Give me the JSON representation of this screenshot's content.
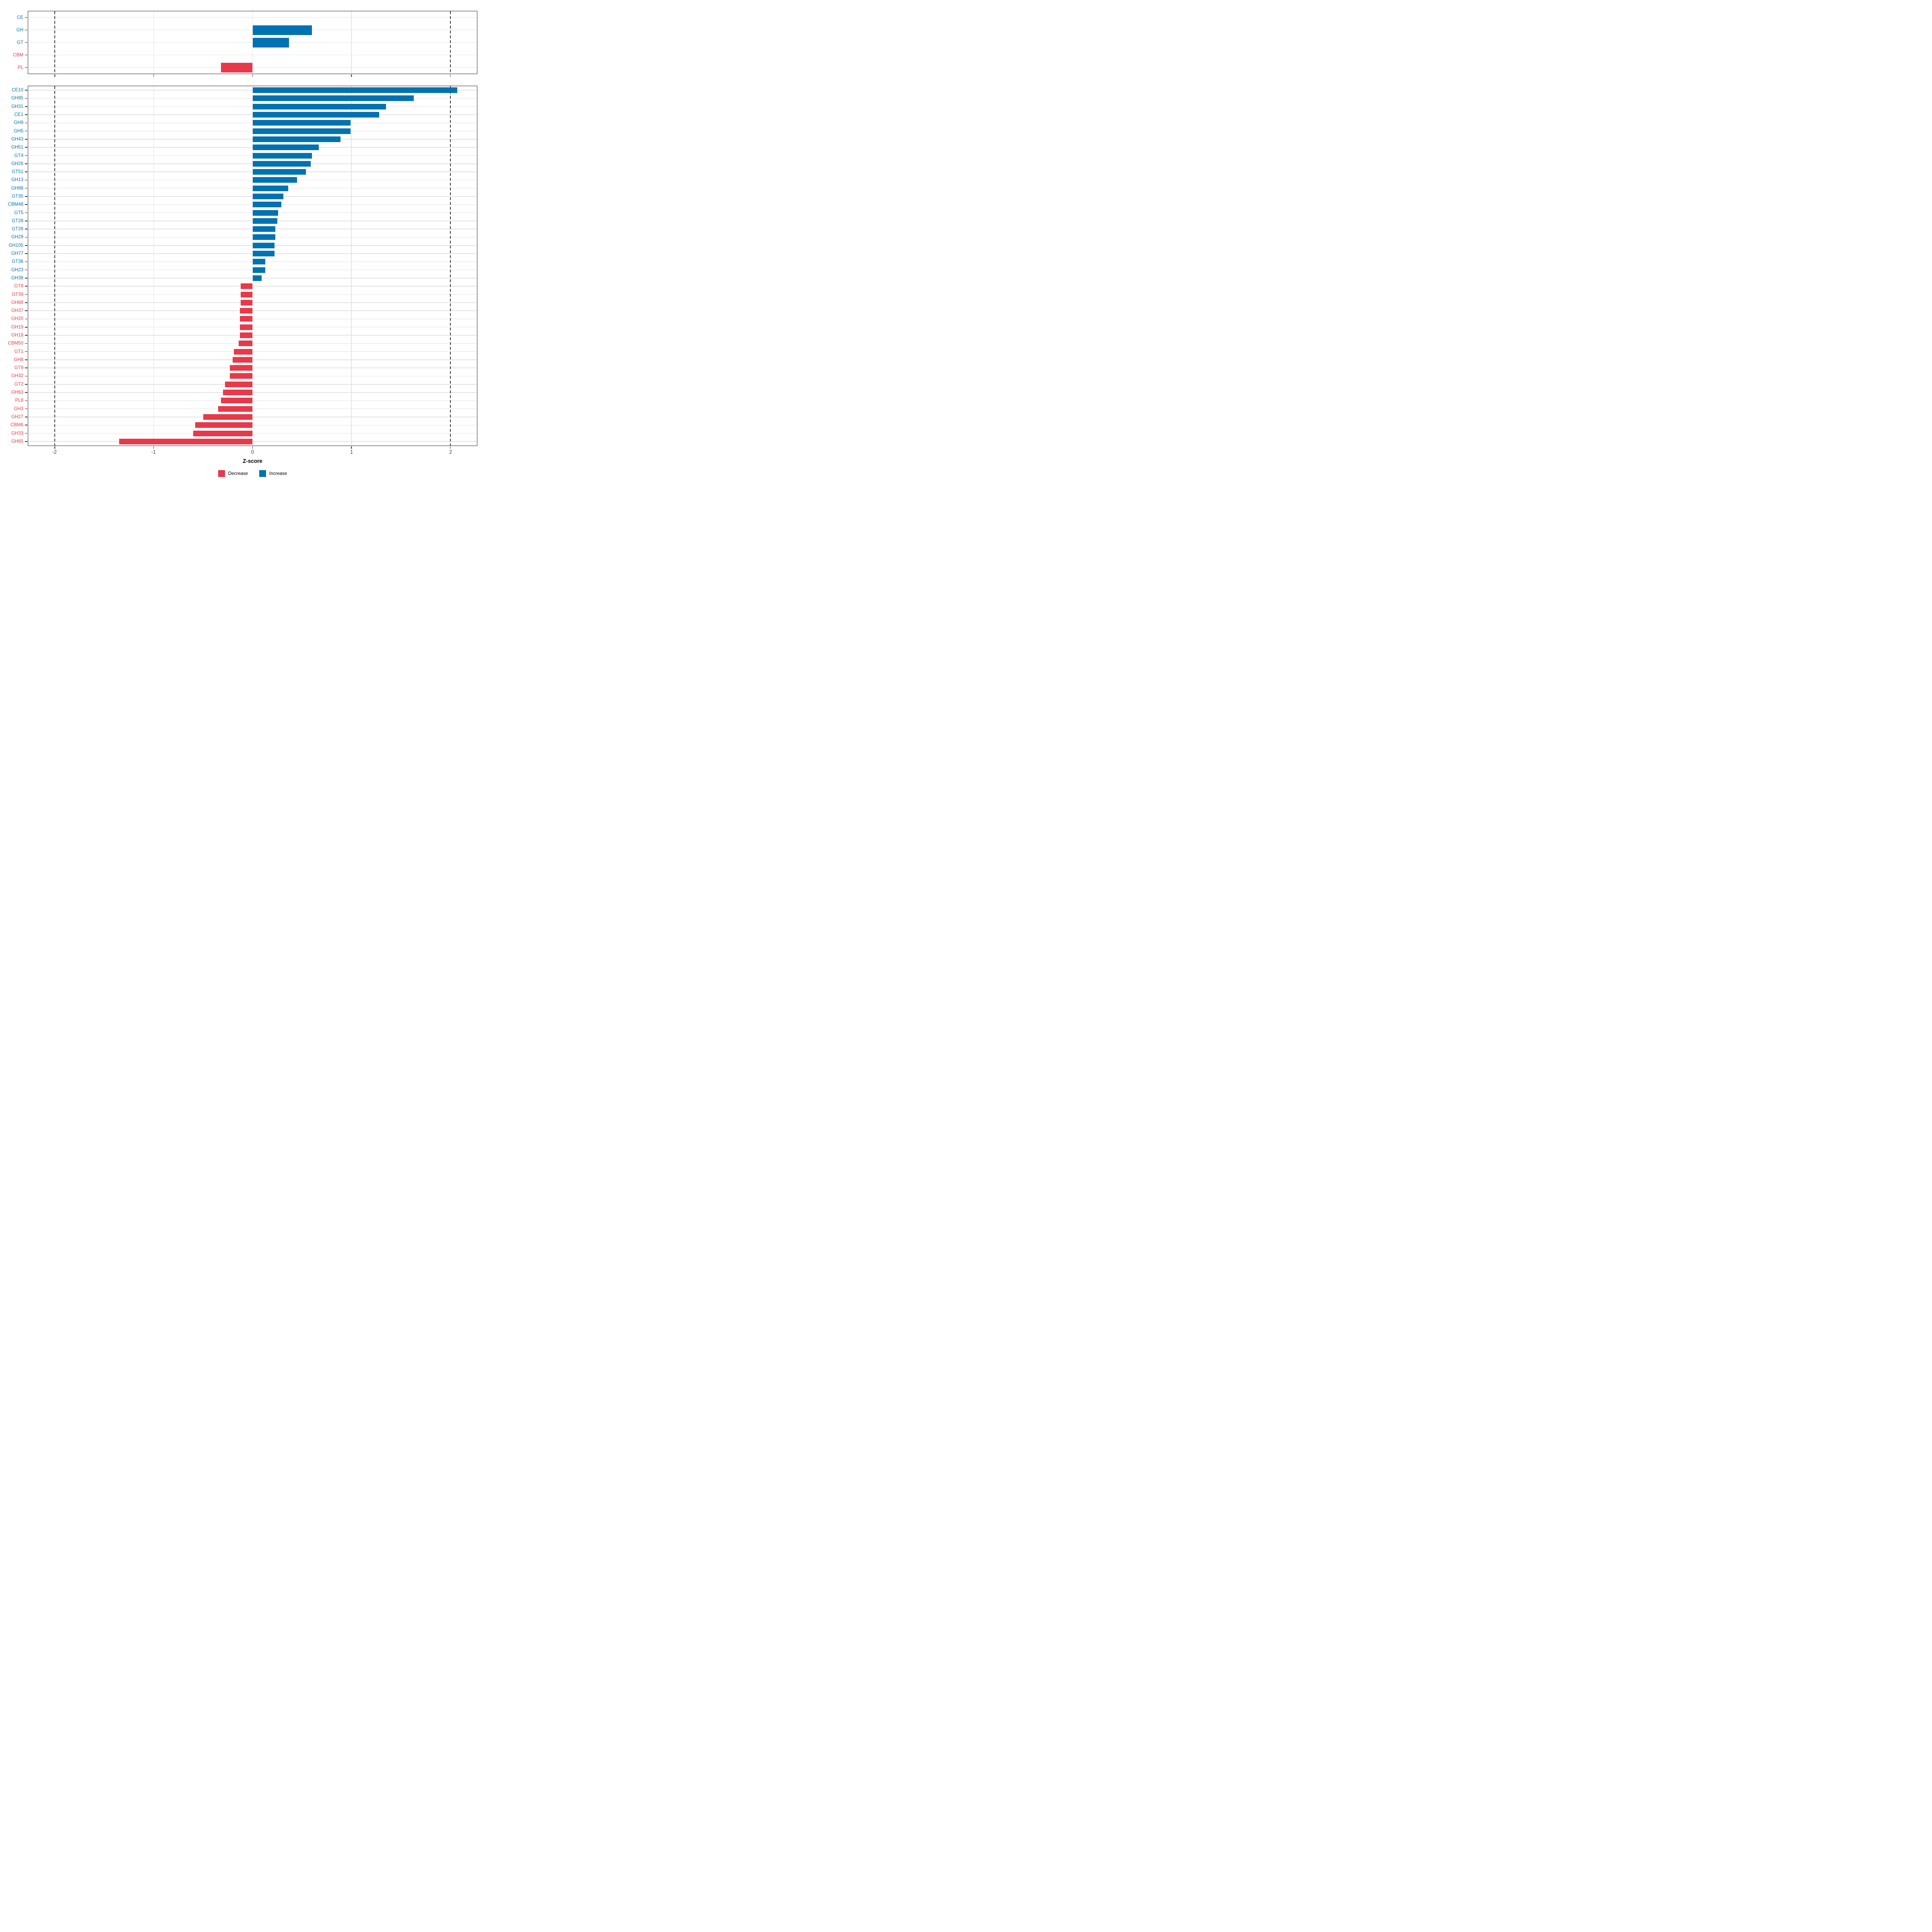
{
  "figure": {
    "x_axis": {
      "label": "Z-score",
      "ticks": [
        "-2",
        "-1",
        "0",
        "1",
        "2"
      ],
      "tick_values": [
        -2,
        -1,
        0,
        1,
        2
      ],
      "range": [
        -2.27,
        2.27
      ],
      "reference_lines": [
        -2,
        2
      ]
    },
    "colors": {
      "increase": "#0072B2",
      "decrease": "#E8394A",
      "gridline": "#e3e3e3",
      "panel_border": "#2e2e2e",
      "tick_text": "#3d3d3d"
    },
    "legend": {
      "items": [
        {
          "label": "Decrease",
          "color": "#E8394A"
        },
        {
          "label": "Increase",
          "color": "#0072B2"
        }
      ]
    }
  },
  "chart_data": [
    {
      "type": "bar",
      "orientation": "horizontal",
      "panel": "enzyme-classes",
      "categories": [
        "CE",
        "GH",
        "GT",
        "CBM",
        "PL"
      ],
      "values": [
        0,
        0.6,
        0.37,
        0,
        -0.32
      ],
      "directions": [
        "increase",
        "increase",
        "increase",
        "decrease",
        "decrease"
      ],
      "xlabel": "Z-score",
      "xlim": [
        -2.27,
        2.27
      ],
      "grid": true
    },
    {
      "type": "bar",
      "orientation": "horizontal",
      "panel": "cazyme-families",
      "categories": [
        "CE10",
        "GH95",
        "GH31",
        "CE1",
        "GH9",
        "GH5",
        "GH43",
        "GH51",
        "GT4",
        "GH26",
        "GT51",
        "GH13",
        "GH88",
        "GT35",
        "CBM48",
        "GT5",
        "GT28",
        "GT26",
        "GH29",
        "GH105",
        "GH77",
        "GT36",
        "GH23",
        "GH38",
        "GT8",
        "GT39",
        "GH68",
        "GH37",
        "GH20",
        "GH19",
        "GH18",
        "CBM50",
        "GT1",
        "GH8",
        "GT9",
        "GH32",
        "GT2",
        "GH63",
        "PL8",
        "GH3",
        "GH27",
        "CBM6",
        "GH33",
        "GH65"
      ],
      "values": [
        2.07,
        1.63,
        1.35,
        1.28,
        0.99,
        0.99,
        0.89,
        0.67,
        0.6,
        0.59,
        0.54,
        0.45,
        0.36,
        0.31,
        0.29,
        0.26,
        0.25,
        0.23,
        0.23,
        0.22,
        0.22,
        0.13,
        0.13,
        0.09,
        -0.12,
        -0.12,
        -0.12,
        -0.13,
        -0.13,
        -0.13,
        -0.13,
        -0.14,
        -0.19,
        -0.2,
        -0.23,
        -0.23,
        -0.28,
        -0.3,
        -0.32,
        -0.35,
        -0.5,
        -0.58,
        -0.6,
        -1.35
      ],
      "directions": [
        "increase",
        "increase",
        "increase",
        "increase",
        "increase",
        "increase",
        "increase",
        "increase",
        "increase",
        "increase",
        "increase",
        "increase",
        "increase",
        "increase",
        "increase",
        "increase",
        "increase",
        "increase",
        "increase",
        "increase",
        "increase",
        "increase",
        "increase",
        "increase",
        "decrease",
        "decrease",
        "decrease",
        "decrease",
        "decrease",
        "decrease",
        "decrease",
        "decrease",
        "decrease",
        "decrease",
        "decrease",
        "decrease",
        "decrease",
        "decrease",
        "decrease",
        "decrease",
        "decrease",
        "decrease",
        "decrease",
        "decrease"
      ],
      "xlabel": "Z-score",
      "xlim": [
        -2.27,
        2.27
      ],
      "grid": true
    }
  ]
}
